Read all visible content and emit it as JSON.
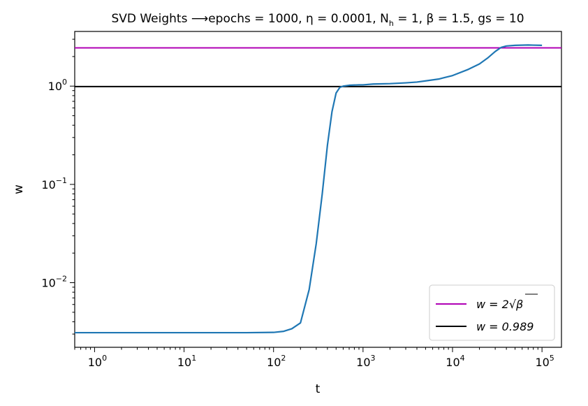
{
  "chart_data": {
    "type": "line",
    "title_prefix": "SVD Weights ",
    "title_arrow": "⟶",
    "title_rest": "epochs = 1000, η = 0.0001, N",
    "title_sub": "h",
    "title_end": " = 1,  β = 1.5, gs = 10",
    "xlabel": "t",
    "ylabel": "w",
    "xscale": "log",
    "yscale": "log",
    "xlim": [
      0.6,
      165000
    ],
    "ylim": [
      0.0022,
      3.6
    ],
    "grid": false,
    "legend_position": "lower-right",
    "x_ticks": [
      {
        "value": 1,
        "base": "10",
        "exp": "0"
      },
      {
        "value": 10,
        "base": "10",
        "exp": "1"
      },
      {
        "value": 100,
        "base": "10",
        "exp": "2"
      },
      {
        "value": 1000,
        "base": "10",
        "exp": "3"
      },
      {
        "value": 10000,
        "base": "10",
        "exp": "4"
      },
      {
        "value": 100000,
        "base": "10",
        "exp": "5"
      }
    ],
    "y_ticks": [
      {
        "value": 0.01,
        "base": "10",
        "exp": "−2"
      },
      {
        "value": 0.1,
        "base": "10",
        "exp": "−1"
      },
      {
        "value": 1,
        "base": "10",
        "exp": "0"
      }
    ],
    "series": [
      {
        "color": "#1f77b4",
        "x": [
          0.6,
          1,
          10,
          50,
          100,
          130,
          160,
          200,
          250,
          300,
          350,
          400,
          450,
          500,
          550,
          600,
          700,
          900,
          1000,
          1300,
          2000,
          3000,
          4000,
          5000,
          7000,
          10000,
          15000,
          20000,
          25000,
          30000,
          35000,
          40000,
          50000,
          70000,
          100000
        ],
        "y": [
          0.0031,
          0.0031,
          0.0031,
          0.0031,
          0.00312,
          0.0032,
          0.0034,
          0.0039,
          0.0085,
          0.025,
          0.08,
          0.25,
          0.55,
          0.85,
          0.97,
          1.0,
          1.02,
          1.03,
          1.03,
          1.05,
          1.06,
          1.08,
          1.1,
          1.13,
          1.18,
          1.28,
          1.48,
          1.68,
          1.95,
          2.25,
          2.48,
          2.56,
          2.6,
          2.62,
          2.6
        ]
      }
    ],
    "hlines": [
      {
        "y": 2.449,
        "color": "#b000b5",
        "label_left": "w = 2",
        "label_right": "β"
      },
      {
        "y": 0.989,
        "color": "#000000",
        "label": "w = 0.989"
      }
    ]
  }
}
